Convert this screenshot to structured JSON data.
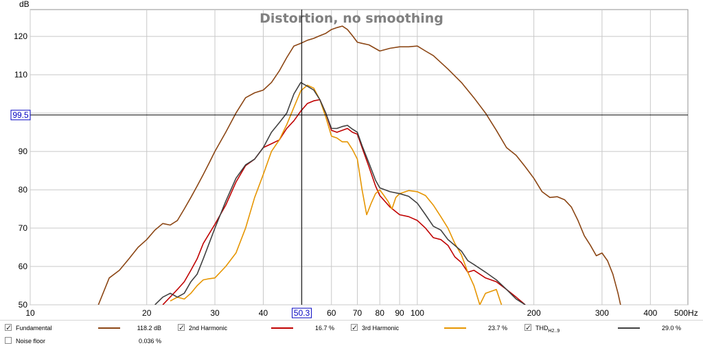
{
  "chart_data": {
    "type": "line",
    "title": "Distortion, no smoothing",
    "ylabel": "dB",
    "xlabel": "",
    "x_unit_label": "500Hz",
    "x_scale": "log",
    "xlim": [
      10,
      500
    ],
    "ylim": [
      50,
      127
    ],
    "x_ticks": [
      10,
      20,
      30,
      40,
      50,
      60,
      70,
      80,
      90,
      100,
      200,
      300,
      400
    ],
    "x_tick_labels": [
      "10",
      "20",
      "30",
      "40",
      "",
      "60",
      "70",
      "80",
      "90",
      "100",
      "200",
      "300",
      "400"
    ],
    "y_ticks": [
      50,
      60,
      70,
      80,
      90,
      100,
      110,
      120
    ],
    "y_tick_labels": [
      "50",
      "60",
      "70",
      "80",
      "90",
      "",
      "110",
      "120"
    ],
    "grid": true,
    "cursor": {
      "x": 50.3,
      "y": 99.5,
      "x_label": "50.3",
      "y_label": "99.5"
    },
    "series": [
      {
        "name": "Fundamental",
        "color": "#8b4513",
        "value_label": "118.2 dB",
        "x": [
          15,
          16,
          17,
          18,
          19,
          20,
          21,
          22,
          23,
          24,
          25,
          26,
          27,
          28,
          29,
          30,
          32,
          34,
          36,
          38,
          40,
          42,
          44,
          46,
          48,
          50,
          52,
          54,
          56,
          58,
          60,
          62,
          64,
          66,
          68,
          70,
          72,
          75,
          80,
          85,
          90,
          95,
          100,
          105,
          110,
          120,
          130,
          140,
          150,
          160,
          170,
          180,
          190,
          200,
          210,
          220,
          230,
          240,
          250,
          260,
          270,
          280,
          290,
          300,
          310,
          320,
          330,
          335
        ],
        "y": [
          50,
          57,
          59,
          62,
          65,
          67,
          69.5,
          71.2,
          70.8,
          72,
          75,
          78,
          81,
          84,
          87,
          90,
          95,
          100,
          104,
          105.3,
          106,
          108,
          111,
          114.5,
          117.5,
          118.2,
          119,
          119.5,
          120.2,
          120.8,
          121.8,
          122.3,
          122.7,
          121.8,
          120.2,
          118.5,
          118.2,
          117.8,
          116.2,
          116.9,
          117.3,
          117.3,
          117.5,
          116.2,
          115,
          111.5,
          108,
          104,
          100,
          95.5,
          91,
          89,
          86,
          83,
          79.5,
          78,
          78.2,
          77.4,
          75.5,
          72,
          68,
          65.5,
          62.8,
          63.5,
          61.5,
          58,
          53,
          50
        ]
      },
      {
        "name": "2nd Harmonic",
        "color": "#c00000",
        "value_label": "16.7 %",
        "x": [
          22,
          24,
          25,
          26,
          27,
          28,
          30,
          32,
          34,
          36,
          38,
          40,
          42,
          44,
          46,
          48,
          50,
          52,
          54,
          56,
          58,
          60,
          62,
          64,
          66,
          68,
          70,
          72,
          75,
          78,
          80,
          85,
          90,
          95,
          100,
          105,
          110,
          115,
          120,
          125,
          130,
          135,
          140,
          150,
          160,
          170,
          180,
          190
        ],
        "y": [
          50,
          54,
          56,
          59,
          62,
          66,
          71,
          76,
          82,
          86.3,
          88,
          91,
          92,
          93,
          96,
          98,
          100.5,
          102.5,
          103.2,
          103.5,
          100,
          95.5,
          95,
          95.5,
          96,
          95,
          94.5,
          91,
          86,
          81,
          78.5,
          75.5,
          73.5,
          73,
          72,
          70,
          67.5,
          67,
          65.5,
          62.5,
          61,
          58.5,
          59,
          57,
          56,
          54,
          52,
          50
        ]
      },
      {
        "name": "3rd Harmonic",
        "color": "#e69500",
        "value_label": "23.7 %",
        "x": [
          23,
          24,
          25,
          26,
          27,
          28,
          29,
          30,
          32,
          34,
          36,
          38,
          40,
          42,
          44,
          46,
          48,
          50,
          52,
          54,
          56,
          58,
          60,
          62,
          64,
          66,
          68,
          70,
          72,
          74,
          76,
          78,
          80,
          82,
          84,
          86,
          88,
          90,
          95,
          100,
          105,
          110,
          115,
          120,
          125,
          130,
          135,
          140,
          145,
          150,
          160,
          165
        ],
        "y": [
          51,
          52,
          51.5,
          53,
          55,
          56.5,
          56.8,
          57,
          60,
          63.5,
          70,
          78,
          84,
          90,
          93,
          97,
          101.5,
          105.8,
          107.3,
          106.5,
          103.5,
          99,
          94,
          93.5,
          92.5,
          92.5,
          90.5,
          88,
          80,
          73.5,
          76.5,
          79,
          80,
          78.5,
          77,
          75,
          78,
          79,
          79.8,
          79.5,
          78.5,
          76,
          73,
          70,
          66,
          63,
          58.5,
          55,
          50,
          53,
          54,
          50
        ]
      },
      {
        "name": "THD",
        "sub": "H2..9",
        "color": "#404040",
        "value_label": "29.0 %",
        "x": [
          21,
          22,
          23,
          24,
          25,
          26,
          27,
          28,
          30,
          32,
          34,
          36,
          38,
          40,
          42,
          44,
          46,
          48,
          50,
          52,
          54,
          56,
          58,
          60,
          62,
          64,
          66,
          68,
          70,
          72,
          75,
          78,
          80,
          85,
          90,
          95,
          100,
          105,
          110,
          115,
          120,
          125,
          130,
          135,
          140,
          150,
          160,
          170,
          180,
          190
        ],
        "y": [
          50,
          52,
          53,
          52,
          53,
          56,
          58,
          62,
          70,
          77,
          83,
          86.5,
          88,
          91,
          95,
          97.5,
          100,
          105,
          108,
          107,
          106,
          103.5,
          100,
          96,
          96,
          96.5,
          96.8,
          95.8,
          95,
          91.5,
          87,
          82.5,
          80.5,
          79.5,
          79,
          78.3,
          76.5,
          73.5,
          70.5,
          69.5,
          67,
          65.5,
          64,
          61.5,
          60.5,
          58.5,
          56.5,
          54,
          51.5,
          50
        ]
      }
    ]
  },
  "legend": {
    "items": [
      {
        "label": "Fundamental",
        "value": "118.2 dB",
        "checked": true
      },
      {
        "label": "2nd Harmonic",
        "value": "16.7 %",
        "checked": true
      },
      {
        "label": "3rd Harmonic",
        "value": "23.7 %",
        "checked": true
      },
      {
        "label": "THD",
        "sub": "H2..9",
        "value": "29.0 %",
        "checked": true
      },
      {
        "label": "Noise floor",
        "value": "0.036 %",
        "checked": false
      }
    ]
  }
}
